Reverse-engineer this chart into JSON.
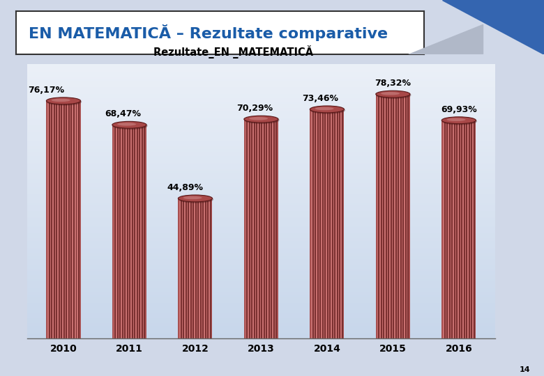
{
  "title_main": "EN MATEMATICĂ – Rezultate comparative",
  "chart_title": "Rezultate_EN _MATEMATICĂ",
  "categories": [
    "2010",
    "2011",
    "2012",
    "2013",
    "2014",
    "2015",
    "2016"
  ],
  "values": [
    76.17,
    68.47,
    44.89,
    70.29,
    73.46,
    78.32,
    69.93
  ],
  "labels": [
    "76,17%",
    "68,47%",
    "44,89%",
    "70,29%",
    "73,46%",
    "78,32%",
    "69,93%"
  ],
  "bar_color_dark": "#7B3030",
  "bar_color_light": "#C87070",
  "bar_color_mid": "#A85050",
  "bg_gradient_top": "#cdd8e8",
  "bg_gradient_bot": "#e8eef6",
  "title_color": "#1a5ca8",
  "outer_bg": "#d0d8e8",
  "ylim": [
    0,
    88
  ]
}
